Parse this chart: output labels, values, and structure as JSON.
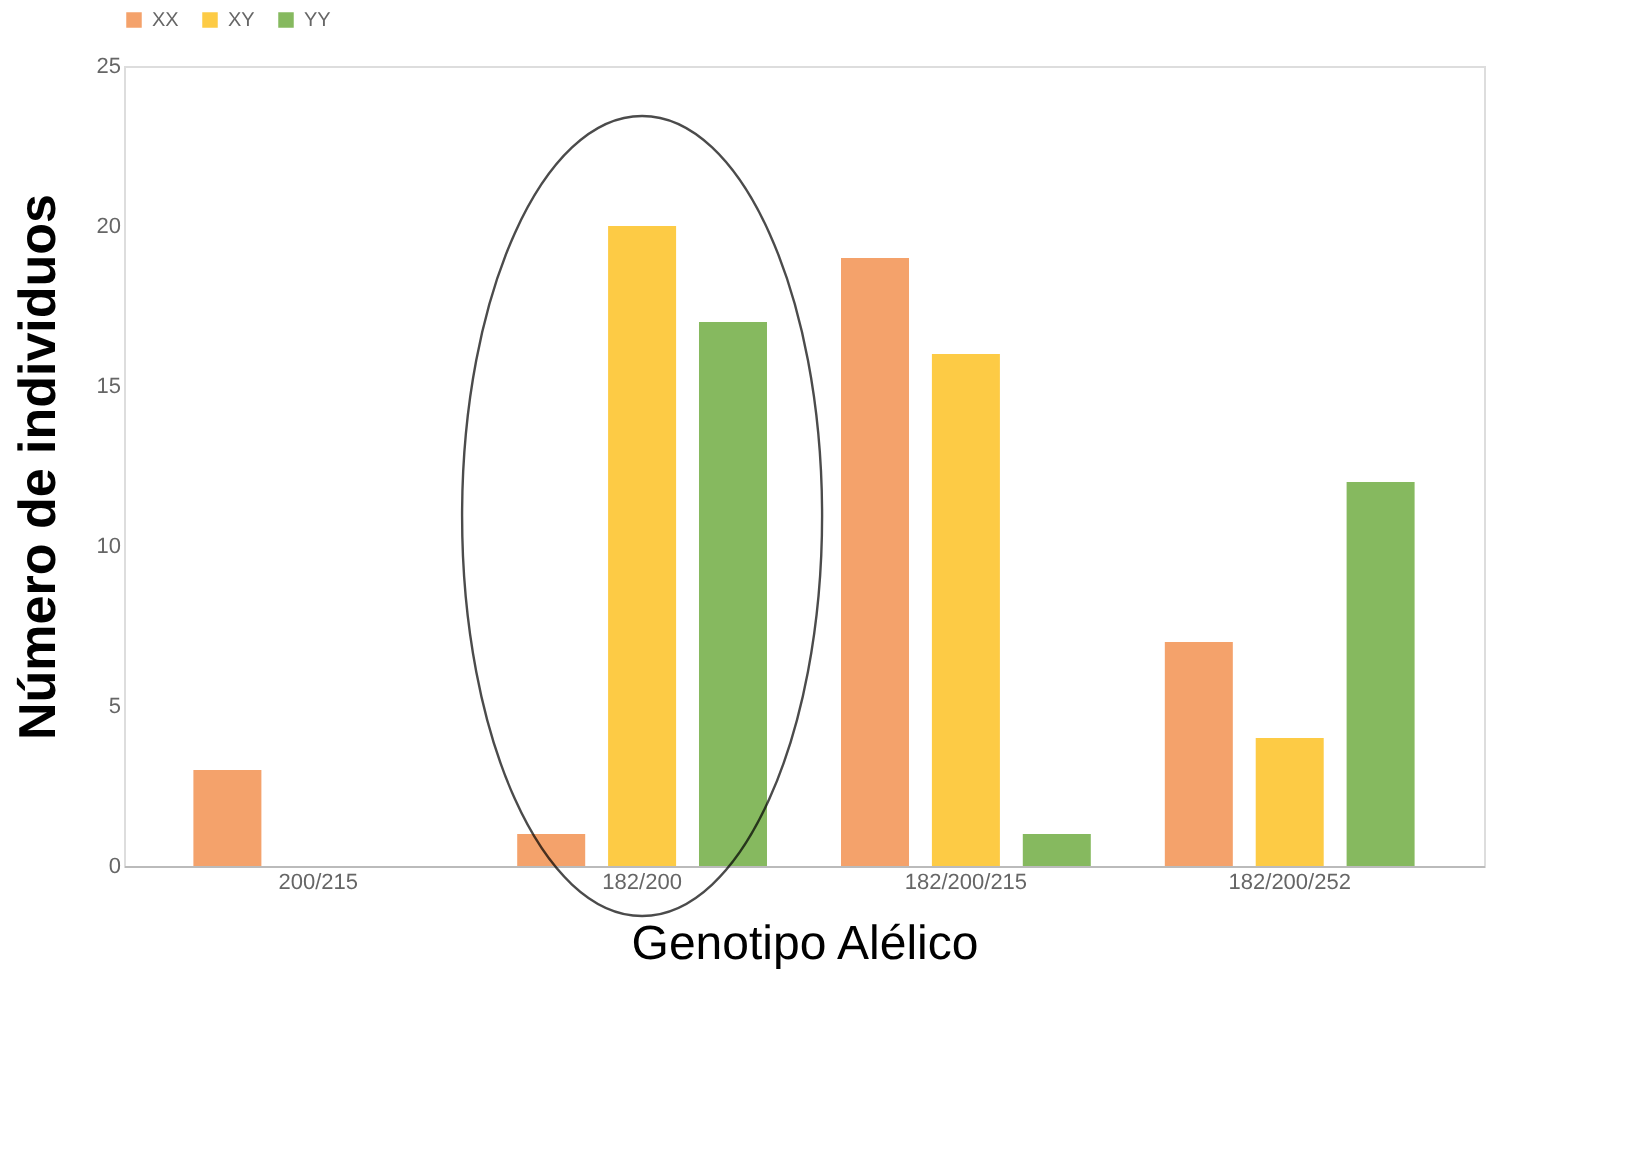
{
  "chart_data": {
    "type": "bar",
    "xlabel": "Genotipo Alélico",
    "ylabel": "Número de individuos",
    "categories": [
      "200/215",
      "182/200",
      "182/200/215",
      "182/200/252"
    ],
    "series": [
      {
        "name": "XX",
        "color": "#f4a26b",
        "values": [
          3,
          1,
          19,
          7
        ]
      },
      {
        "name": "XY",
        "color": "#fdcb45",
        "values": [
          0,
          20,
          16,
          4
        ]
      },
      {
        "name": "YY",
        "color": "#86b95f",
        "values": [
          0,
          17,
          1,
          12
        ]
      }
    ],
    "ylim": [
      0,
      25
    ],
    "yticks": [
      0,
      5,
      10,
      15,
      20,
      25
    ],
    "grid": false,
    "legend": "top"
  }
}
